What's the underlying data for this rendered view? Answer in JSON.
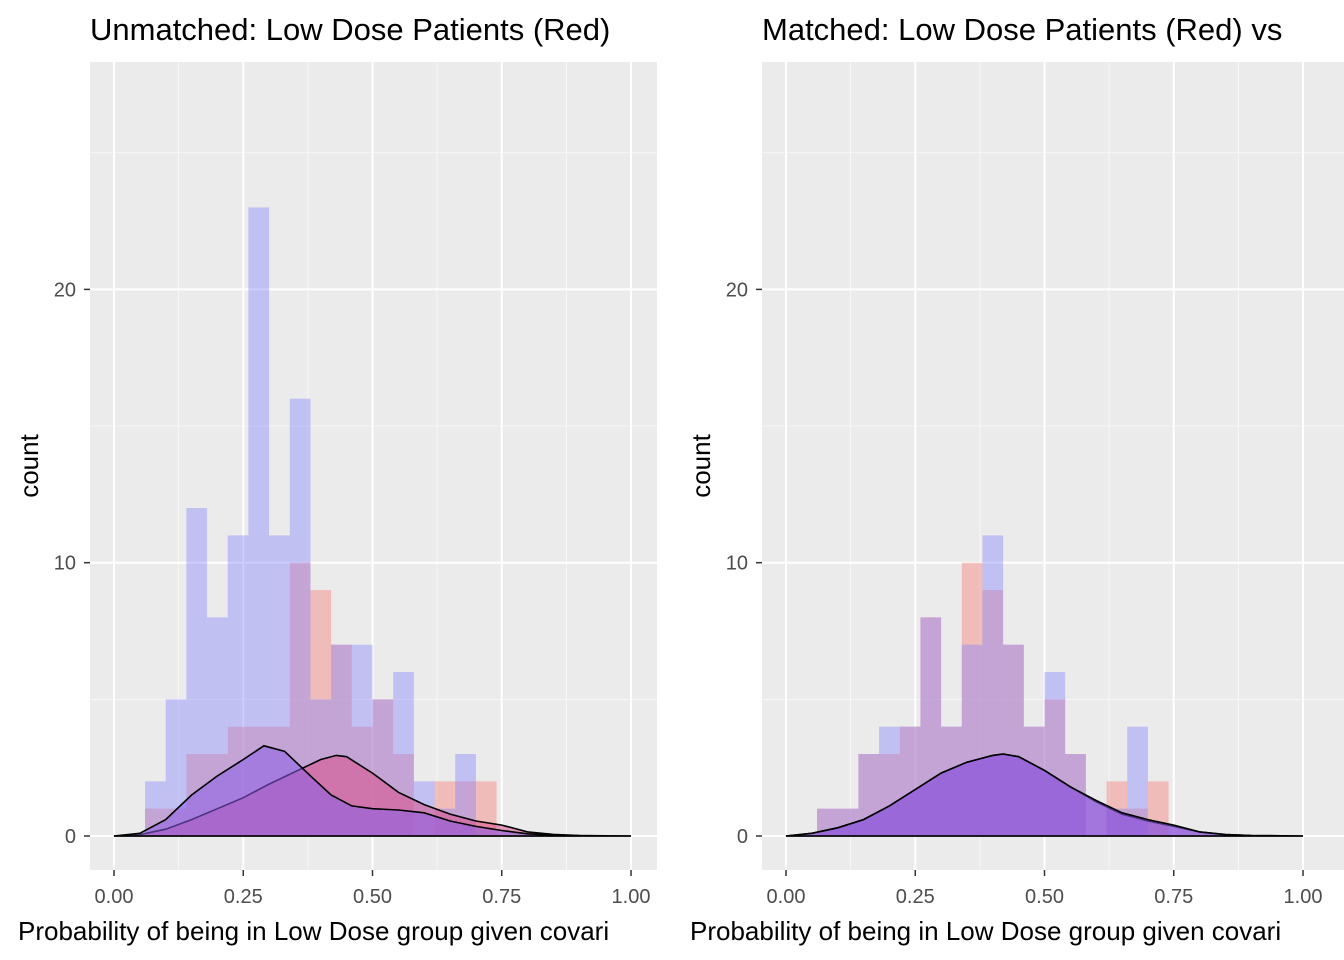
{
  "chart_data": [
    {
      "type": "bar",
      "title": "Unmatched: Low Dose Patients (Red)",
      "xlabel": "Probability of being in Low Dose group given covari",
      "ylabel": "count",
      "xlim": [
        0.0,
        1.0
      ],
      "ylim": [
        0,
        27
      ],
      "x_ticks": [
        "0.00",
        "0.25",
        "0.50",
        "0.75",
        "1.00"
      ],
      "y_ticks": [
        "0",
        "10",
        "20"
      ],
      "grid": true,
      "bin_edges": [
        0.06,
        0.1,
        0.14,
        0.18,
        0.22,
        0.26,
        0.3,
        0.34,
        0.38,
        0.42,
        0.46,
        0.5,
        0.54,
        0.58,
        0.62,
        0.66,
        0.7,
        0.74,
        0.78
      ],
      "series": [
        {
          "color": "#f8766d",
          "values": [
            1,
            1,
            3,
            3,
            4,
            4,
            4,
            10,
            9,
            7,
            4,
            5,
            3,
            0,
            2,
            2,
            2,
            0
          ]
        },
        {
          "color": "#7f7fff",
          "values": [
            2,
            5,
            12,
            8,
            11,
            23,
            11,
            16,
            5,
            7,
            7,
            5,
            6,
            2,
            1,
            3,
            0,
            0
          ]
        }
      ],
      "densities": [
        {
          "color": "#d94f8a",
          "x": [
            0.0,
            0.05,
            0.1,
            0.15,
            0.2,
            0.25,
            0.3,
            0.35,
            0.4,
            0.43,
            0.45,
            0.5,
            0.55,
            0.6,
            0.65,
            0.7,
            0.75,
            0.8,
            0.85,
            0.9,
            1.0
          ],
          "y": [
            0.0,
            0.05,
            0.25,
            0.6,
            1.0,
            1.4,
            1.9,
            2.35,
            2.8,
            2.95,
            2.9,
            2.3,
            1.6,
            1.15,
            0.8,
            0.55,
            0.4,
            0.15,
            0.06,
            0.02,
            0.0
          ]
        },
        {
          "color": "#8a5ce6",
          "x": [
            0.0,
            0.05,
            0.1,
            0.15,
            0.2,
            0.25,
            0.29,
            0.33,
            0.38,
            0.42,
            0.46,
            0.5,
            0.55,
            0.6,
            0.65,
            0.7,
            0.75,
            0.8,
            0.85,
            0.9,
            1.0
          ],
          "y": [
            0.0,
            0.1,
            0.6,
            1.5,
            2.2,
            2.8,
            3.3,
            3.1,
            2.2,
            1.5,
            1.1,
            1.0,
            0.95,
            0.85,
            0.55,
            0.35,
            0.2,
            0.08,
            0.03,
            0.01,
            0.0
          ]
        }
      ]
    },
    {
      "type": "bar",
      "title": "Matched: Low Dose Patients (Red) vs",
      "xlabel": "Probability of being in Low Dose group given covari",
      "ylabel": "count",
      "xlim": [
        0.0,
        1.0
      ],
      "ylim": [
        0,
        27
      ],
      "x_ticks": [
        "0.00",
        "0.25",
        "0.50",
        "0.75",
        "1.00"
      ],
      "y_ticks": [
        "0",
        "10",
        "20"
      ],
      "grid": true,
      "bin_edges": [
        0.06,
        0.1,
        0.14,
        0.18,
        0.22,
        0.26,
        0.3,
        0.34,
        0.38,
        0.42,
        0.46,
        0.5,
        0.54,
        0.58,
        0.62,
        0.66,
        0.7,
        0.74,
        0.78
      ],
      "series": [
        {
          "color": "#f8766d",
          "values": [
            1,
            1,
            3,
            3,
            4,
            8,
            4,
            10,
            9,
            7,
            4,
            5,
            3,
            0,
            2,
            1,
            2,
            0
          ]
        },
        {
          "color": "#7f7fff",
          "values": [
            1,
            1,
            3,
            4,
            4,
            8,
            4,
            7,
            11,
            7,
            4,
            6,
            3,
            0,
            1,
            4,
            0,
            0
          ]
        }
      ],
      "densities": [
        {
          "color": "#9b4fbf",
          "x": [
            0.0,
            0.05,
            0.1,
            0.15,
            0.2,
            0.25,
            0.3,
            0.35,
            0.4,
            0.42,
            0.45,
            0.5,
            0.55,
            0.6,
            0.65,
            0.7,
            0.75,
            0.8,
            0.85,
            0.9,
            1.0
          ],
          "y": [
            0.0,
            0.1,
            0.3,
            0.6,
            1.1,
            1.7,
            2.3,
            2.7,
            2.95,
            3.0,
            2.9,
            2.4,
            1.8,
            1.25,
            0.8,
            0.55,
            0.35,
            0.15,
            0.05,
            0.02,
            0.0
          ]
        },
        {
          "color": "#8a5ce6",
          "x": [
            0.0,
            0.05,
            0.1,
            0.15,
            0.2,
            0.25,
            0.3,
            0.35,
            0.4,
            0.42,
            0.45,
            0.5,
            0.55,
            0.6,
            0.65,
            0.7,
            0.75,
            0.8,
            0.85,
            0.9,
            1.0
          ],
          "y": [
            0.0,
            0.1,
            0.3,
            0.6,
            1.1,
            1.7,
            2.3,
            2.7,
            2.95,
            3.0,
            2.9,
            2.4,
            1.8,
            1.3,
            0.85,
            0.6,
            0.4,
            0.15,
            0.05,
            0.02,
            0.0
          ]
        }
      ]
    }
  ]
}
